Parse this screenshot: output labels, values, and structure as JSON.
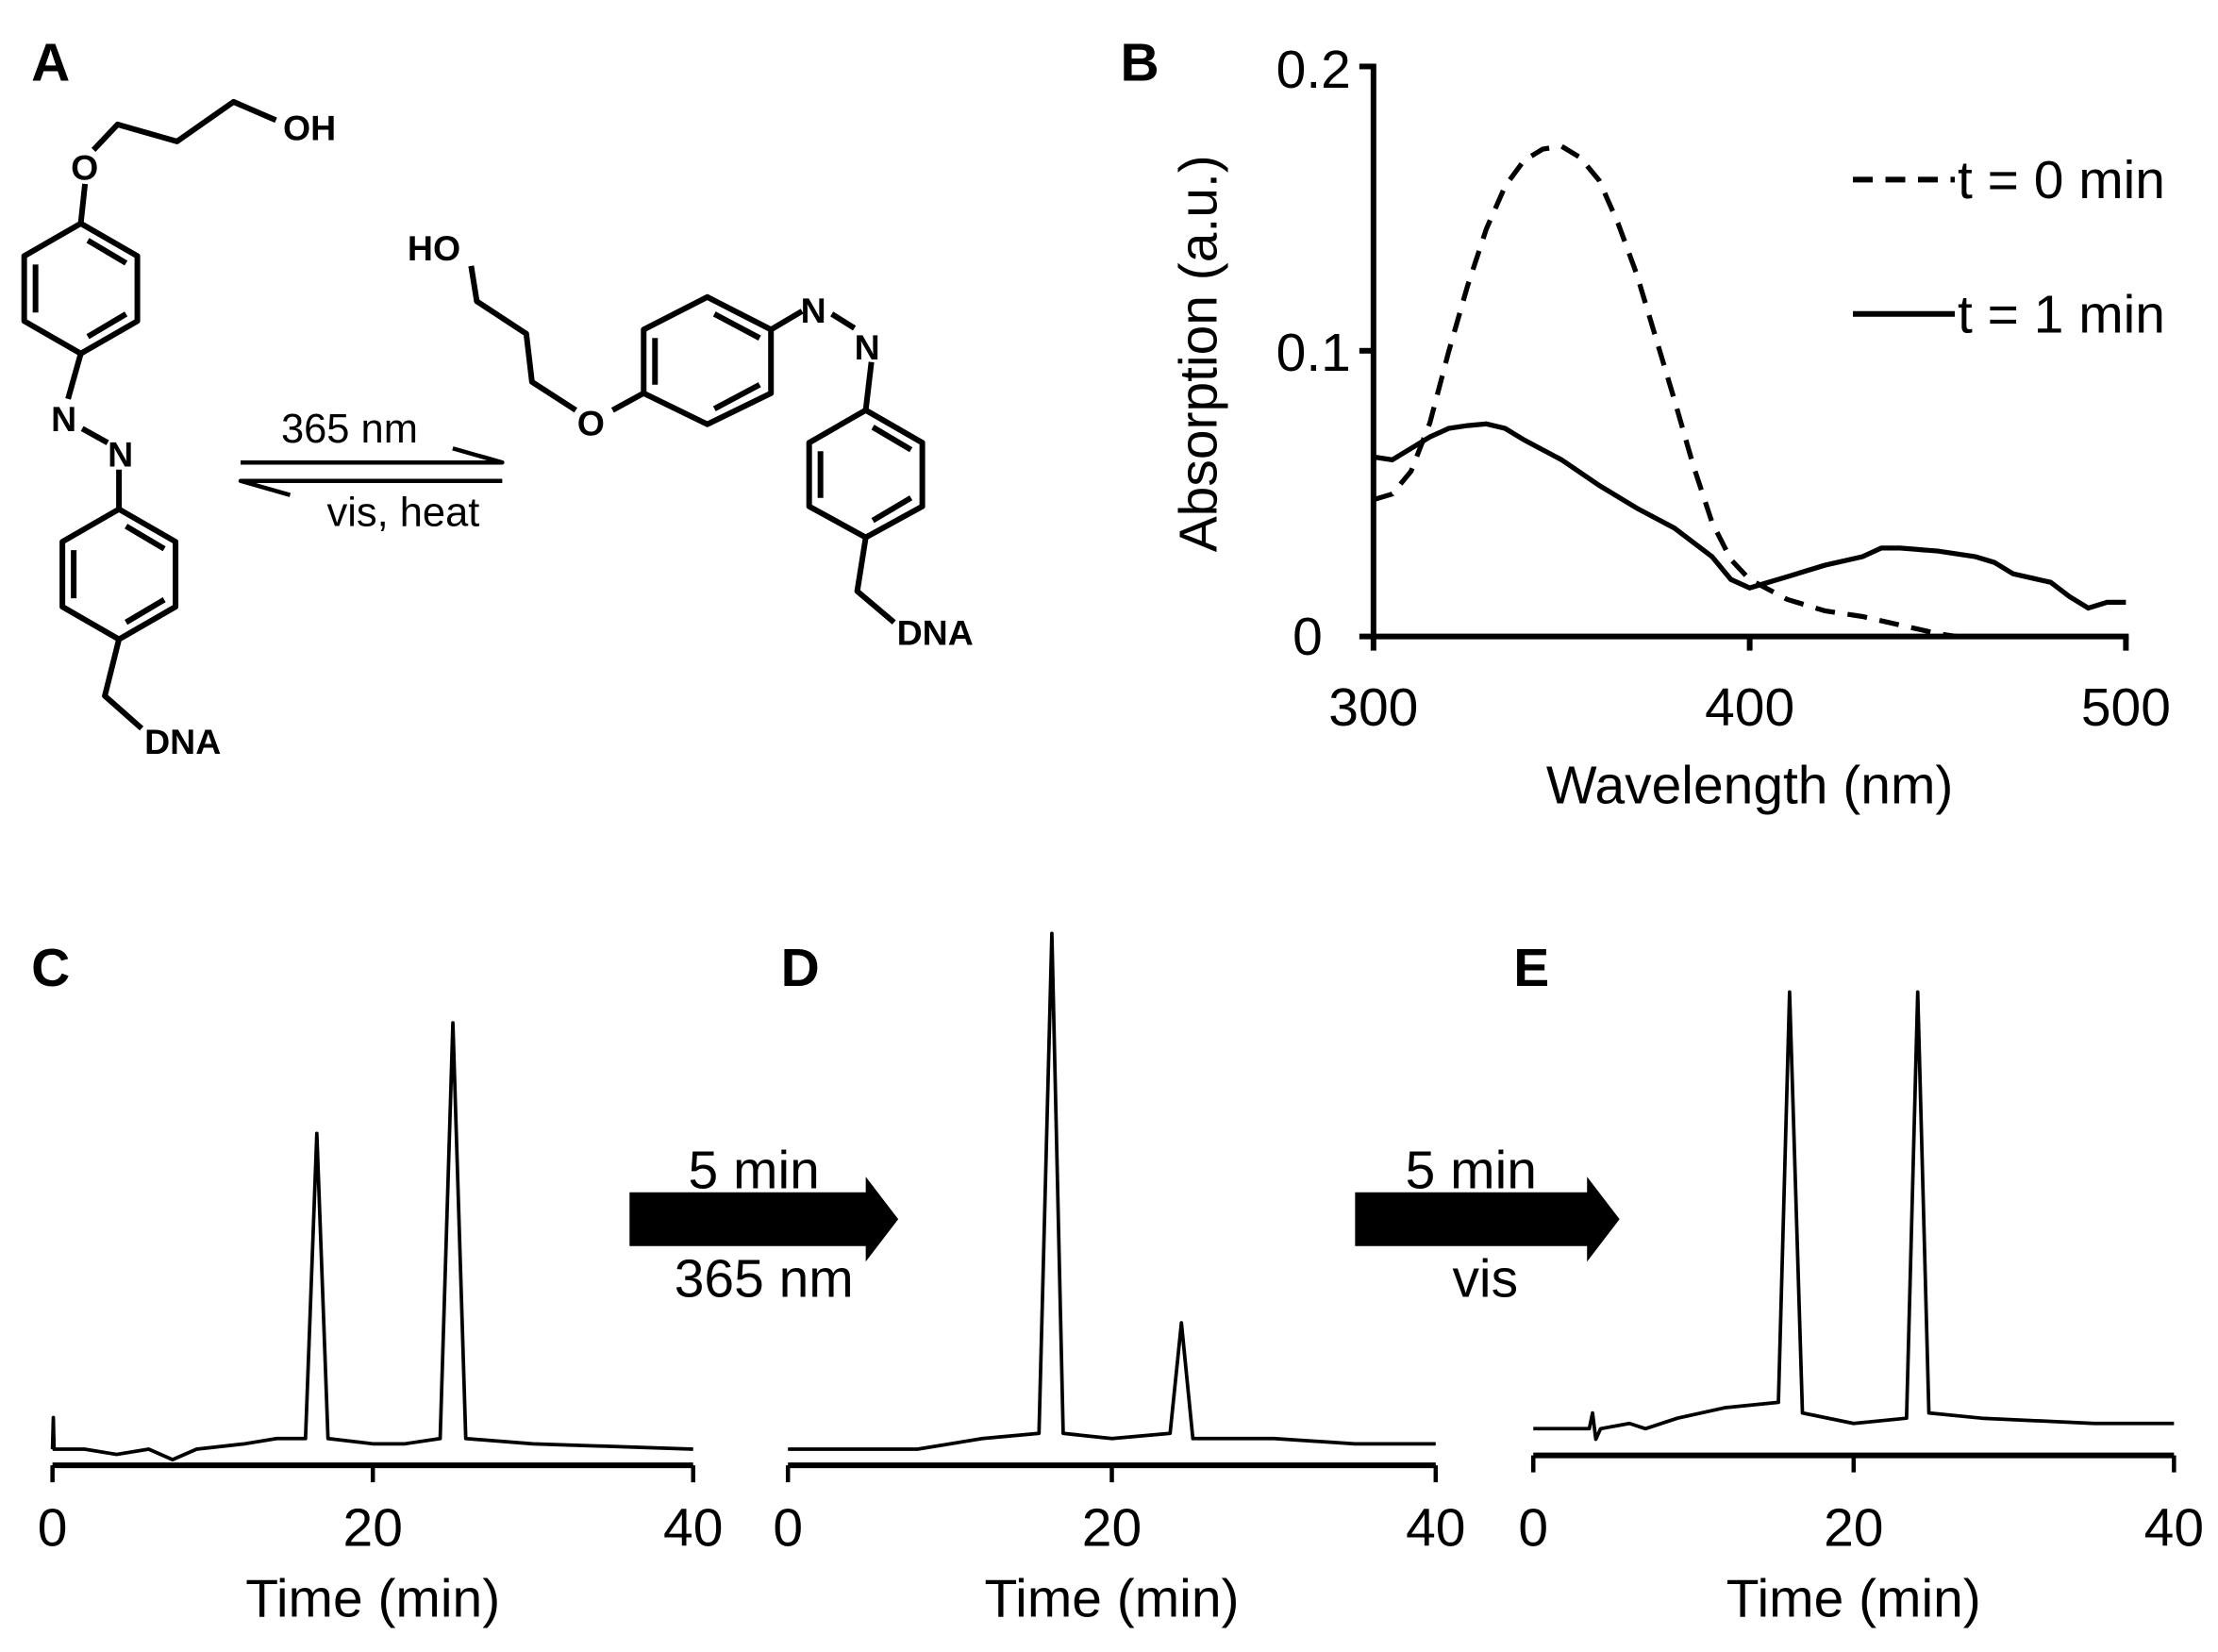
{
  "panels": {
    "a": "A",
    "b": "B",
    "c": "C",
    "d": "D",
    "e": "E"
  },
  "scheme": {
    "left": {
      "oh": "OH",
      "o": "O",
      "n1": "N",
      "n2": "N",
      "dna": "DNA"
    },
    "right": {
      "ho": "HO",
      "o": "O",
      "n1": "N",
      "n2": "N",
      "dna": "DNA"
    },
    "forward": "365 nm",
    "reverse": "vis, heat"
  },
  "transitions": [
    {
      "top": "5 min",
      "bottom": "365 nm"
    },
    {
      "top": "5 min",
      "bottom": "vis"
    }
  ],
  "chart_data": [
    {
      "panel": "B",
      "type": "line",
      "xlabel": "Wavelength (nm)",
      "ylabel": "Absorption (a.u.)",
      "xlim": [
        300,
        500
      ],
      "ylim": [
        0,
        0.2
      ],
      "xticks": [
        "300",
        "400",
        "500"
      ],
      "yticks": [
        "0",
        "0.1",
        "0.2"
      ],
      "legend_position": "top-right",
      "series": [
        {
          "name": "t = 0 min",
          "style": "dashed",
          "points": [
            [
              300,
              0.048
            ],
            [
              305,
              0.05
            ],
            [
              310,
              0.058
            ],
            [
              315,
              0.075
            ],
            [
              320,
              0.1
            ],
            [
              325,
              0.123
            ],
            [
              330,
              0.143
            ],
            [
              335,
              0.158
            ],
            [
              340,
              0.167
            ],
            [
              345,
              0.171
            ],
            [
              350,
              0.172
            ],
            [
              355,
              0.168
            ],
            [
              360,
              0.16
            ],
            [
              365,
              0.145
            ],
            [
              370,
              0.127
            ],
            [
              375,
              0.105
            ],
            [
              380,
              0.083
            ],
            [
              385,
              0.06
            ],
            [
              390,
              0.04
            ],
            [
              395,
              0.027
            ],
            [
              400,
              0.02
            ],
            [
              410,
              0.013
            ],
            [
              420,
              0.009
            ],
            [
              430,
              0.007
            ],
            [
              440,
              0.004
            ],
            [
              450,
              0.001
            ],
            [
              455,
              0
            ]
          ]
        },
        {
          "name": "t = 1 min",
          "style": "solid",
          "points": [
            [
              300,
              0.063
            ],
            [
              305,
              0.062
            ],
            [
              310,
              0.066
            ],
            [
              315,
              0.07
            ],
            [
              320,
              0.073
            ],
            [
              325,
              0.074
            ],
            [
              330,
              0.0746
            ],
            [
              335,
              0.073
            ],
            [
              340,
              0.069
            ],
            [
              350,
              0.062
            ],
            [
              360,
              0.053
            ],
            [
              370,
              0.045
            ],
            [
              380,
              0.038
            ],
            [
              390,
              0.028
            ],
            [
              395,
              0.02
            ],
            [
              400,
              0.017
            ],
            [
              405,
              0.019
            ],
            [
              410,
              0.021
            ],
            [
              420,
              0.025
            ],
            [
              430,
              0.028
            ],
            [
              435,
              0.031
            ],
            [
              440,
              0.031
            ],
            [
              450,
              0.03
            ],
            [
              460,
              0.028
            ],
            [
              465,
              0.026
            ],
            [
              470,
              0.022
            ],
            [
              480,
              0.019
            ],
            [
              485,
              0.014
            ],
            [
              490,
              0.01
            ],
            [
              495,
              0.012
            ],
            [
              500,
              0.012
            ]
          ]
        }
      ]
    },
    {
      "panel": "C",
      "type": "line",
      "xlabel": "Time (min)",
      "xlim": [
        0,
        40
      ],
      "xticks": [
        "0",
        "20",
        "40"
      ],
      "series": [
        {
          "name": "chromatogram",
          "points": [
            [
              0,
              0.02
            ],
            [
              0.05,
              0.08
            ],
            [
              0.1,
              0.02
            ],
            [
              2,
              0.02
            ],
            [
              4,
              0.01
            ],
            [
              6,
              0.02
            ],
            [
              7.5,
              0.0
            ],
            [
              9,
              0.02
            ],
            [
              12,
              0.03
            ],
            [
              14,
              0.04
            ],
            [
              15.8,
              0.04
            ],
            [
              16.5,
              0.62
            ],
            [
              17.2,
              0.04
            ],
            [
              20,
              0.03
            ],
            [
              22,
              0.03
            ],
            [
              24.2,
              0.04
            ],
            [
              25,
              0.83
            ],
            [
              25.8,
              0.04
            ],
            [
              30,
              0.03
            ],
            [
              35,
              0.025
            ],
            [
              40,
              0.02
            ]
          ]
        }
      ]
    },
    {
      "panel": "D",
      "type": "line",
      "xlabel": "Time (min)",
      "xlim": [
        0,
        40
      ],
      "xticks": [
        "0",
        "20",
        "40"
      ],
      "series": [
        {
          "name": "chromatogram",
          "points": [
            [
              0,
              0.02
            ],
            [
              4,
              0.02
            ],
            [
              8,
              0.02
            ],
            [
              12,
              0.04
            ],
            [
              15.5,
              0.05
            ],
            [
              16.3,
              1.0
            ],
            [
              17,
              0.05
            ],
            [
              20,
              0.04
            ],
            [
              23.6,
              0.05
            ],
            [
              24.3,
              0.26
            ],
            [
              25,
              0.04
            ],
            [
              30,
              0.04
            ],
            [
              35,
              0.03
            ],
            [
              40,
              0.03
            ]
          ]
        }
      ]
    },
    {
      "panel": "E",
      "type": "line",
      "xlabel": "Time (min)",
      "xlim": [
        0,
        40
      ],
      "xticks": [
        "0",
        "20",
        "40"
      ],
      "series": [
        {
          "name": "chromatogram",
          "points": [
            [
              0,
              0.04
            ],
            [
              3.5,
              0.04
            ],
            [
              3.7,
              0.07
            ],
            [
              3.9,
              0.02
            ],
            [
              4.2,
              0.04
            ],
            [
              6,
              0.05
            ],
            [
              7,
              0.04
            ],
            [
              9,
              0.06
            ],
            [
              12,
              0.08
            ],
            [
              15.3,
              0.09
            ],
            [
              16,
              0.87
            ],
            [
              16.8,
              0.07
            ],
            [
              20,
              0.05
            ],
            [
              23.3,
              0.06
            ],
            [
              24,
              0.87
            ],
            [
              24.7,
              0.07
            ],
            [
              28,
              0.06
            ],
            [
              35,
              0.05
            ],
            [
              40,
              0.05
            ]
          ]
        }
      ]
    }
  ]
}
